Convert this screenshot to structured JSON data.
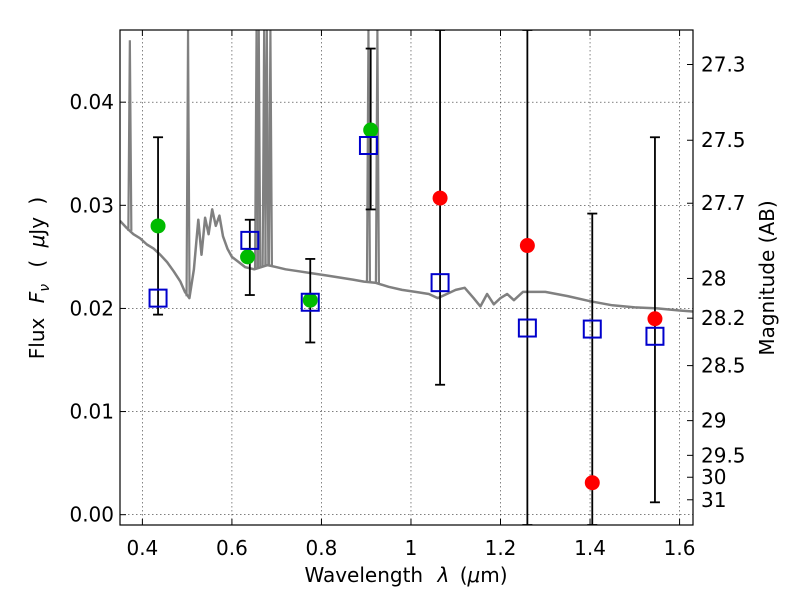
{
  "chart_data": {
    "type": "scatter",
    "title": "",
    "xlabel": "Wavelength",
    "xlabel_symbol": "λ",
    "xlabel_unit_open": "(",
    "xlabel_unit_mu": "μ",
    "xlabel_unit_rest": "m)",
    "ylabel": "Flux",
    "ylabel_symbol": "F",
    "ylabel_subscript": "ν",
    "ylabel_unit_open": "(",
    "ylabel_unit_mu": "μ",
    "ylabel_unit_rest": "Jy",
    "ylabel_unit_close": ")",
    "y2label": "Magnitude (AB)",
    "xlim": [
      0.35,
      1.63
    ],
    "ylim": [
      -0.001,
      0.047
    ],
    "grid": true,
    "colors": {
      "model": "#808080",
      "observed": "#ff0000",
      "observed_alt": "#00bb00",
      "synthetic": "#0000cc",
      "errorbar": "#000000"
    },
    "x_ticks": [
      {
        "value": 0.4,
        "label": "0.4"
      },
      {
        "value": 0.6,
        "label": "0.6"
      },
      {
        "value": 0.8,
        "label": "0.8"
      },
      {
        "value": 1.0,
        "label": "1"
      },
      {
        "value": 1.2,
        "label": "1.2"
      },
      {
        "value": 1.4,
        "label": "1.4"
      },
      {
        "value": 1.6,
        "label": "1.6"
      }
    ],
    "y_ticks": [
      {
        "value": 0.0,
        "label": "0.00"
      },
      {
        "value": 0.01,
        "label": "0.01"
      },
      {
        "value": 0.02,
        "label": "0.02"
      },
      {
        "value": 0.03,
        "label": "0.03"
      },
      {
        "value": 0.04,
        "label": "0.04"
      }
    ],
    "y2_ticks": [
      {
        "value": 27.3,
        "label": "27.3"
      },
      {
        "value": 27.5,
        "label": "27.5"
      },
      {
        "value": 27.7,
        "label": "27.7"
      },
      {
        "value": 28,
        "label": "28"
      },
      {
        "value": 28.2,
        "label": "28.2"
      },
      {
        "value": 28.5,
        "label": "28.5"
      },
      {
        "value": 29,
        "label": "29"
      },
      {
        "value": 29.5,
        "label": "29.5"
      },
      {
        "value": 30,
        "label": "30"
      },
      {
        "value": 31,
        "label": "31"
      }
    ],
    "observed_points": [
      {
        "x": 0.435,
        "y": 0.028,
        "color": "green"
      },
      {
        "x": 0.635,
        "y": 0.025,
        "color": "green"
      },
      {
        "x": 0.775,
        "y": 0.0208,
        "color": "green"
      },
      {
        "x": 0.91,
        "y": 0.0373,
        "color": "green"
      },
      {
        "x": 1.065,
        "y": 0.0307,
        "color": "red"
      },
      {
        "x": 1.26,
        "y": 0.0261,
        "color": "red"
      },
      {
        "x": 1.405,
        "y": 0.0031,
        "color": "red"
      },
      {
        "x": 1.545,
        "y": 0.019,
        "color": "red"
      }
    ],
    "synthetic_points": [
      {
        "x": 0.435,
        "y": 0.021
      },
      {
        "x": 0.64,
        "y": 0.0266
      },
      {
        "x": 0.775,
        "y": 0.0206
      },
      {
        "x": 0.905,
        "y": 0.0358
      },
      {
        "x": 1.065,
        "y": 0.0225
      },
      {
        "x": 1.26,
        "y": 0.0181
      },
      {
        "x": 1.405,
        "y": 0.018
      },
      {
        "x": 1.545,
        "y": 0.0173
      }
    ],
    "error_bars": [
      {
        "x": 0.435,
        "low": 0.0194,
        "high": 0.0366
      },
      {
        "x": 0.64,
        "low": 0.0213,
        "high": 0.0286
      },
      {
        "x": 0.775,
        "low": 0.0167,
        "high": 0.0248
      },
      {
        "x": 0.91,
        "low": 0.0296,
        "high": 0.0452
      },
      {
        "x": 1.065,
        "low": 0.0126,
        "high": 0.047
      },
      {
        "x": 1.26,
        "low": -0.001,
        "high": 0.047
      },
      {
        "x": 1.405,
        "low": -0.001,
        "high": 0.0292
      },
      {
        "x": 1.545,
        "low": 0.0012,
        "high": 0.0366
      }
    ],
    "model_spectrum": [
      [
        0.35,
        0.0285
      ],
      [
        0.365,
        0.0278
      ],
      [
        0.38,
        0.0272
      ],
      [
        0.395,
        0.0268
      ],
      [
        0.41,
        0.0262
      ],
      [
        0.425,
        0.0258
      ],
      [
        0.44,
        0.0252
      ],
      [
        0.455,
        0.0245
      ],
      [
        0.47,
        0.0236
      ],
      [
        0.485,
        0.0226
      ],
      [
        0.495,
        0.0216
      ],
      [
        0.505,
        0.021
      ],
      [
        0.515,
        0.0238
      ],
      [
        0.525,
        0.0286
      ],
      [
        0.532,
        0.0252
      ],
      [
        0.54,
        0.0288
      ],
      [
        0.548,
        0.0272
      ],
      [
        0.556,
        0.0296
      ],
      [
        0.564,
        0.028
      ],
      [
        0.572,
        0.029
      ],
      [
        0.58,
        0.027
      ],
      [
        0.59,
        0.0258
      ],
      [
        0.6,
        0.025
      ],
      [
        0.615,
        0.0245
      ],
      [
        0.63,
        0.024
      ],
      [
        0.65,
        0.0238
      ],
      [
        0.68,
        0.0242
      ],
      [
        0.7,
        0.024
      ],
      [
        0.72,
        0.0238
      ],
      [
        0.75,
        0.0236
      ],
      [
        0.78,
        0.0234
      ],
      [
        0.81,
        0.0232
      ],
      [
        0.84,
        0.023
      ],
      [
        0.87,
        0.0228
      ],
      [
        0.895,
        0.0226
      ],
      [
        0.92,
        0.0225
      ],
      [
        0.95,
        0.0221
      ],
      [
        0.98,
        0.0218
      ],
      [
        1.01,
        0.0216
      ],
      [
        1.04,
        0.0214
      ],
      [
        1.06,
        0.021
      ],
      [
        1.08,
        0.0214
      ],
      [
        1.1,
        0.0218
      ],
      [
        1.12,
        0.022
      ],
      [
        1.14,
        0.021
      ],
      [
        1.155,
        0.0202
      ],
      [
        1.17,
        0.0214
      ],
      [
        1.185,
        0.0204
      ],
      [
        1.2,
        0.021
      ],
      [
        1.215,
        0.0214
      ],
      [
        1.23,
        0.0208
      ],
      [
        1.25,
        0.0216
      ],
      [
        1.3,
        0.0216
      ],
      [
        1.35,
        0.0212
      ],
      [
        1.4,
        0.0207
      ],
      [
        1.45,
        0.0203
      ],
      [
        1.5,
        0.0201
      ],
      [
        1.55,
        0.02
      ],
      [
        1.6,
        0.0198
      ],
      [
        1.63,
        0.0197
      ]
    ],
    "emission_lines": [
      {
        "x": 0.372,
        "peak": 0.046
      },
      {
        "x": 0.502,
        "peak": 0.047
      },
      {
        "x": 0.655,
        "peak": 0.047
      },
      {
        "x": 0.66,
        "peak": 0.047
      },
      {
        "x": 0.672,
        "peak": 0.047
      },
      {
        "x": 0.678,
        "peak": 0.047
      },
      {
        "x": 0.686,
        "peak": 0.047
      },
      {
        "x": 0.905,
        "peak": 0.047
      },
      {
        "x": 0.925,
        "peak": 0.047
      }
    ]
  }
}
